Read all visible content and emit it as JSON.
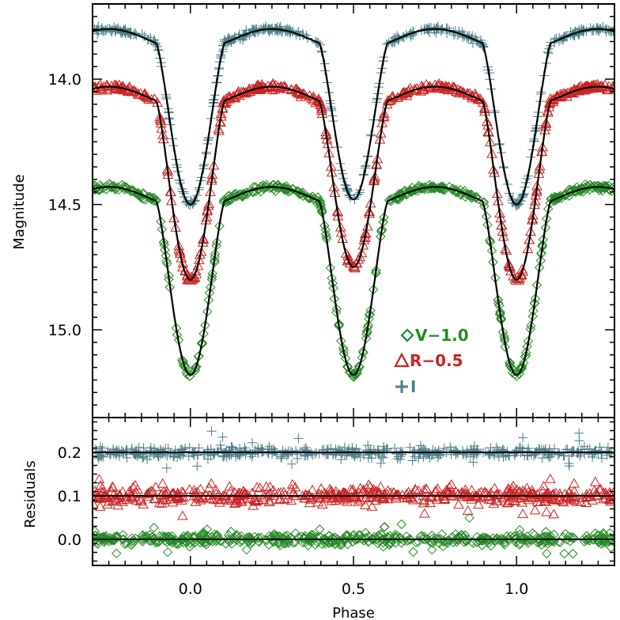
{
  "chart_data": [
    {
      "type": "scatter",
      "panel": "light-curve",
      "ylabel": "Magnitude",
      "xlabel": "",
      "xlim": [
        -0.3,
        1.3
      ],
      "ylim": [
        15.35,
        13.7
      ],
      "yticks": [
        "14.0",
        "14.5",
        "15.0"
      ],
      "legend_position": "center-right",
      "series": [
        {
          "name": "V−1.0",
          "symbol": "diamond",
          "color": "#228b22",
          "max_mag": 14.43,
          "primary_min": 15.18,
          "secondary_min": 15.18
        },
        {
          "name": "R−0.5",
          "symbol": "triangle",
          "color": "#cc2222",
          "max_mag": 14.03,
          "primary_min": 14.8,
          "secondary_min": 14.75
        },
        {
          "name": "I",
          "symbol": "plus",
          "color": "#4a7f88",
          "max_mag": 13.8,
          "primary_min": 14.5,
          "secondary_min": 14.48
        }
      ]
    },
    {
      "type": "scatter",
      "panel": "residuals",
      "ylabel": "Residuals",
      "xlabel": "Phase",
      "xlim": [
        -0.3,
        1.3
      ],
      "ylim": [
        -0.06,
        0.28
      ],
      "xticks": [
        "0.0",
        "0.5",
        "1.0"
      ],
      "yticks": [
        "0.0",
        "0.1",
        "0.2"
      ],
      "series": [
        {
          "name": "V−1.0",
          "symbol": "diamond",
          "color": "#228b22",
          "offset": 0.0,
          "scatter": 0.012
        },
        {
          "name": "R−0.5",
          "symbol": "triangle",
          "color": "#cc2222",
          "offset": 0.1,
          "scatter": 0.018
        },
        {
          "name": "I",
          "symbol": "plus",
          "color": "#4a7f88",
          "offset": 0.2,
          "scatter": 0.012
        }
      ]
    }
  ]
}
